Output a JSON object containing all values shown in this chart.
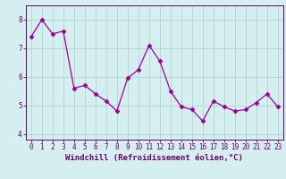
{
  "x": [
    0,
    1,
    2,
    3,
    4,
    5,
    6,
    7,
    8,
    9,
    10,
    11,
    12,
    13,
    14,
    15,
    16,
    17,
    18,
    19,
    20,
    21,
    22,
    23
  ],
  "y": [
    7.4,
    8.0,
    7.5,
    7.6,
    5.6,
    5.7,
    5.4,
    5.15,
    4.8,
    5.95,
    6.25,
    7.1,
    6.55,
    5.5,
    4.95,
    4.85,
    4.45,
    5.15,
    4.95,
    4.8,
    4.85,
    5.1,
    5.4,
    4.95
  ],
  "line_color": "#990099",
  "marker": "D",
  "marker_size": 2.5,
  "bg_color": "#d5eef0",
  "grid_color": "#aacccc",
  "xlabel": "Windchill (Refroidissement éolien,°C)",
  "ylim": [
    3.8,
    8.5
  ],
  "xlim": [
    -0.5,
    23.5
  ],
  "yticks": [
    4,
    5,
    6,
    7,
    8
  ],
  "xticks": [
    0,
    1,
    2,
    3,
    4,
    5,
    6,
    7,
    8,
    9,
    10,
    11,
    12,
    13,
    14,
    15,
    16,
    17,
    18,
    19,
    20,
    21,
    22,
    23
  ],
  "tick_fontsize": 5.5,
  "xlabel_fontsize": 6.5,
  "axis_color": "#660066",
  "spine_color": "#660066"
}
